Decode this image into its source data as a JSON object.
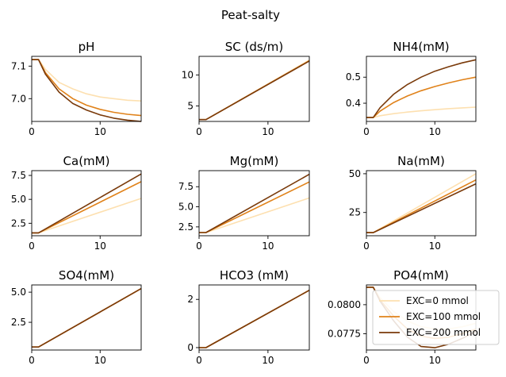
{
  "figure_title": "Peat-salty",
  "series_colors": [
    "#fde0b0",
    "#e0821a",
    "#7a3a0a"
  ],
  "legend": {
    "placement": "lower-right of last panel",
    "entries": [
      "EXC=0 mmol",
      "EXC=100 mmol",
      "EXC=200 mmol"
    ]
  },
  "chart_data": [
    {
      "type": "line",
      "title": "pH",
      "x": [
        0,
        1,
        2,
        4,
        6,
        8,
        10,
        12,
        14,
        16
      ],
      "xlim": [
        0,
        16
      ],
      "xticks": [
        "0",
        "10"
      ],
      "ylim": [
        6.93,
        7.13
      ],
      "yticks": [
        "7.0",
        "7.1"
      ],
      "series": [
        {
          "name": "EXC=0 mmol",
          "values": [
            7.12,
            7.12,
            7.09,
            7.05,
            7.03,
            7.015,
            7.005,
            7.0,
            6.995,
            6.993
          ]
        },
        {
          "name": "EXC=100 mmol",
          "values": [
            7.12,
            7.12,
            7.08,
            7.03,
            7.0,
            6.98,
            6.967,
            6.958,
            6.952,
            6.948
          ]
        },
        {
          "name": "EXC=200 mmol",
          "values": [
            7.12,
            7.12,
            7.075,
            7.02,
            6.985,
            6.965,
            6.95,
            6.94,
            6.934,
            6.93
          ]
        }
      ]
    },
    {
      "type": "line",
      "title": "SC (ds/m)",
      "x": [
        0,
        1,
        16
      ],
      "xlim": [
        0,
        16
      ],
      "xticks": [
        "0",
        "10"
      ],
      "ylim": [
        2.5,
        13
      ],
      "yticks": [
        "5",
        "10"
      ],
      "series": [
        {
          "name": "EXC=0 mmol",
          "values": [
            2.8,
            2.8,
            12.4
          ]
        },
        {
          "name": "EXC=100 mmol",
          "values": [
            2.8,
            2.8,
            12.3
          ]
        },
        {
          "name": "EXC=200 mmol",
          "values": [
            2.8,
            2.8,
            12.25
          ]
        }
      ]
    },
    {
      "type": "line",
      "title": "NH4(mM)",
      "x": [
        0,
        1,
        2,
        4,
        6,
        8,
        10,
        12,
        14,
        16
      ],
      "xlim": [
        0,
        16
      ],
      "xticks": [
        "0",
        "10"
      ],
      "ylim": [
        0.33,
        0.58
      ],
      "yticks": [
        "0.4",
        "0.5"
      ],
      "series": [
        {
          "name": "EXC=0 mmol",
          "values": [
            0.345,
            0.345,
            0.352,
            0.36,
            0.366,
            0.371,
            0.375,
            0.379,
            0.382,
            0.385
          ]
        },
        {
          "name": "EXC=100 mmol",
          "values": [
            0.345,
            0.345,
            0.37,
            0.403,
            0.428,
            0.448,
            0.464,
            0.478,
            0.49,
            0.5
          ]
        },
        {
          "name": "EXC=200 mmol",
          "values": [
            0.345,
            0.345,
            0.383,
            0.435,
            0.472,
            0.5,
            0.523,
            0.54,
            0.555,
            0.567
          ]
        }
      ]
    },
    {
      "type": "line",
      "title": "Ca(mM)",
      "x": [
        0,
        1,
        16
      ],
      "xlim": [
        0,
        16
      ],
      "xticks": [
        "0",
        "10"
      ],
      "ylim": [
        1.2,
        8.0
      ],
      "yticks": [
        "2.5",
        "5.0",
        "7.5"
      ],
      "series": [
        {
          "name": "EXC=0 mmol",
          "values": [
            1.5,
            1.5,
            5.1
          ]
        },
        {
          "name": "EXC=100 mmol",
          "values": [
            1.5,
            1.5,
            6.85
          ]
        },
        {
          "name": "EXC=200 mmol",
          "values": [
            1.5,
            1.5,
            7.65
          ]
        }
      ]
    },
    {
      "type": "line",
      "title": "Mg(mM)",
      "x": [
        0,
        1,
        16
      ],
      "xlim": [
        0,
        16
      ],
      "xticks": [
        "0",
        "10"
      ],
      "ylim": [
        1.4,
        9.5
      ],
      "yticks": [
        "2.5",
        "5.0",
        "7.5"
      ],
      "series": [
        {
          "name": "EXC=0 mmol",
          "values": [
            1.8,
            1.8,
            6.1
          ]
        },
        {
          "name": "EXC=100 mmol",
          "values": [
            1.8,
            1.8,
            8.1
          ]
        },
        {
          "name": "EXC=200 mmol",
          "values": [
            1.8,
            1.8,
            9.05
          ]
        }
      ]
    },
    {
      "type": "line",
      "title": "Na(mM)",
      "x": [
        0,
        1,
        16
      ],
      "xlim": [
        0,
        16
      ],
      "xticks": [
        "0",
        "10"
      ],
      "ylim": [
        10,
        52
      ],
      "yticks": [
        "25",
        "50"
      ],
      "series": [
        {
          "name": "EXC=0 mmol",
          "values": [
            12,
            12,
            50
          ]
        },
        {
          "name": "EXC=100 mmol",
          "values": [
            12,
            12,
            46
          ]
        },
        {
          "name": "EXC=200 mmol",
          "values": [
            12,
            12,
            43.5
          ]
        }
      ]
    },
    {
      "type": "line",
      "title": "SO4(mM)",
      "x": [
        0,
        1,
        16
      ],
      "xlim": [
        0,
        16
      ],
      "xticks": [
        "0",
        "10"
      ],
      "ylim": [
        0.2,
        5.6
      ],
      "yticks": [
        "2.5",
        "5.0"
      ],
      "series": [
        {
          "name": "EXC=0 mmol",
          "values": [
            0.45,
            0.45,
            5.3
          ]
        },
        {
          "name": "EXC=100 mmol",
          "values": [
            0.45,
            0.45,
            5.3
          ]
        },
        {
          "name": "EXC=200 mmol",
          "values": [
            0.45,
            0.45,
            5.3
          ]
        }
      ]
    },
    {
      "type": "line",
      "title": "HCO3 (mM)",
      "x": [
        0,
        1,
        16
      ],
      "xlim": [
        0,
        16
      ],
      "xticks": [
        "0",
        "10"
      ],
      "ylim": [
        -0.1,
        2.6
      ],
      "yticks": [
        "0",
        "2"
      ],
      "series": [
        {
          "name": "EXC=0 mmol",
          "values": [
            0.0,
            0.0,
            2.38
          ]
        },
        {
          "name": "EXC=100 mmol",
          "values": [
            0.0,
            0.0,
            2.38
          ]
        },
        {
          "name": "EXC=200 mmol",
          "values": [
            0.0,
            0.0,
            2.38
          ]
        }
      ]
    },
    {
      "type": "line",
      "title": "PO4(mM)",
      "x": [
        0,
        1,
        2,
        4,
        6,
        8,
        10,
        12,
        14,
        16
      ],
      "xlim": [
        0,
        16
      ],
      "xticks": [
        "0",
        "10"
      ],
      "ylim": [
        0.0761,
        0.0817
      ],
      "yticks": [
        "0.0775",
        "0.0800"
      ],
      "series": [
        {
          "name": "EXC=0 mmol",
          "values": [
            0.0815,
            0.0815,
            0.0806,
            0.0794,
            0.0786,
            0.0781,
            0.0779,
            0.0779,
            0.0781,
            0.0784
          ]
        },
        {
          "name": "EXC=100 mmol",
          "values": [
            0.0815,
            0.0815,
            0.0804,
            0.079,
            0.0779,
            0.0773,
            0.0771,
            0.0772,
            0.0775,
            0.0779
          ]
        },
        {
          "name": "EXC=200 mmol",
          "values": [
            0.0815,
            0.0815,
            0.0803,
            0.0786,
            0.0772,
            0.0764,
            0.0763,
            0.0766,
            0.0771,
            0.0777
          ]
        }
      ]
    }
  ]
}
